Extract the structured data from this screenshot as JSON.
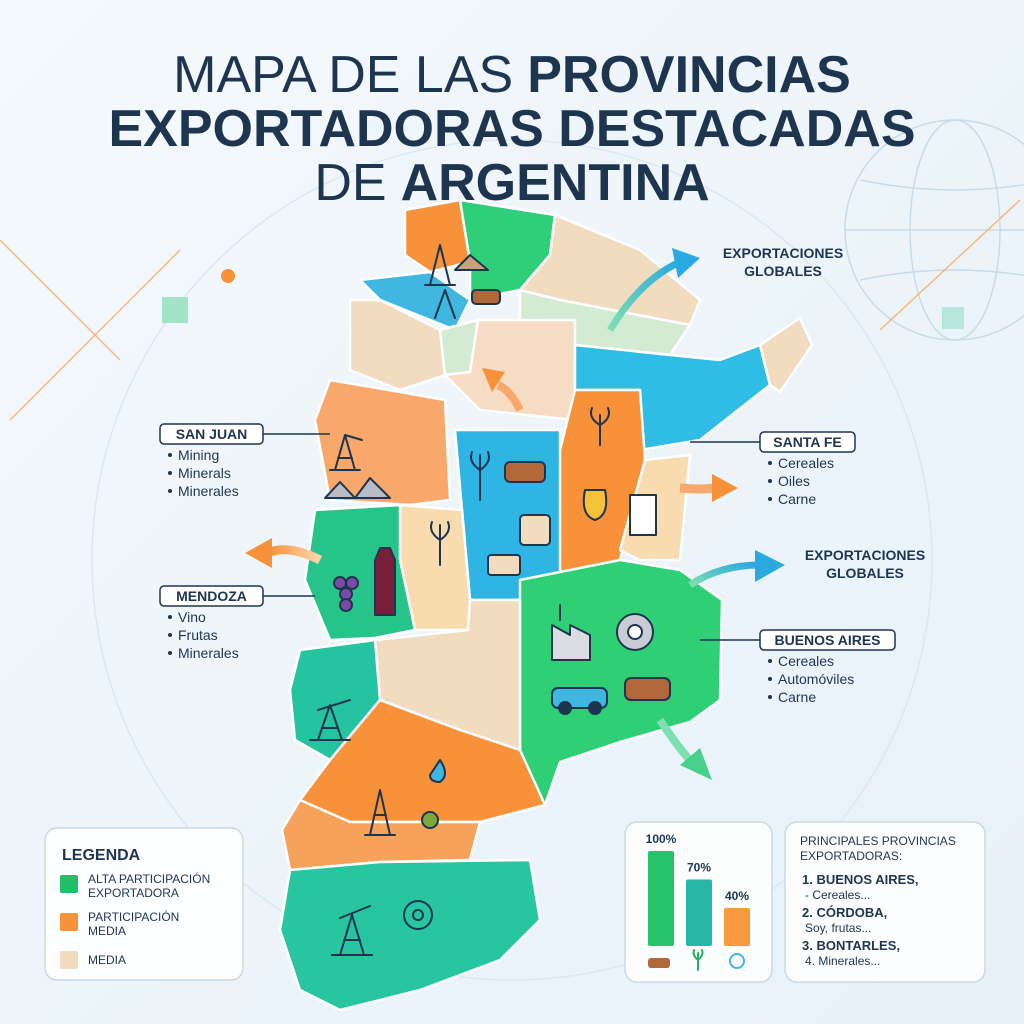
{
  "title": {
    "line1_light": "MAPA DE LAS",
    "line1_bold": "PROVINCIAS",
    "line2": "EXPORTADORAS DESTACADAS",
    "line3_light": "DE",
    "line3_bold": "ARGENTINA"
  },
  "callouts": [
    {
      "name": "SAN JUAN",
      "items": [
        "Mining",
        "Minerals",
        "Minerales"
      ]
    },
    {
      "name": "MENDOZA",
      "items": [
        "Vino",
        "Frutas",
        "Minerales"
      ]
    },
    {
      "name": "SANTA FE",
      "items": [
        "Cereales",
        "Oiles",
        "Carne"
      ]
    },
    {
      "name": "BUENOS AIRES",
      "items": [
        "Cereales",
        "Automóviles",
        "Carne"
      ]
    }
  ],
  "arrow_labels": [
    [
      "EXPORTACIONES",
      "GLOBALES"
    ],
    [
      "EXPORTACIONES",
      "GLOBALES"
    ]
  ],
  "legend": {
    "title": "LEGENDA",
    "items": [
      {
        "label": [
          "ALTA PARTICIPACIÓN",
          "EXPORTADORA"
        ],
        "color": "#1fbf6a"
      },
      {
        "label": [
          "PARTICIPACIÓN",
          "MEDIA"
        ],
        "color": "#f7923a"
      },
      {
        "label": [
          "MEDIA"
        ],
        "color": "#f2dcc0"
      }
    ]
  },
  "mini_chart": {
    "type": "bar",
    "values": [
      100,
      70,
      40
    ],
    "value_labels": [
      "100%",
      "70%",
      "40%"
    ],
    "colors": [
      "#25c46a",
      "#25b7a8",
      "#f79a3e"
    ]
  },
  "ranking": {
    "title": [
      "PRINCIPALES PROVINCIAS",
      "EXPORTADORAS:"
    ],
    "items": [
      {
        "name": "1. BUENOS AIRES,",
        "detail": "- Cereales..."
      },
      {
        "name": "2. CÓRDOBA,",
        "detail": "Soy, frutas..."
      },
      {
        "name": "3. BONTARLES,",
        "detail": "4. Minerales..."
      }
    ]
  }
}
